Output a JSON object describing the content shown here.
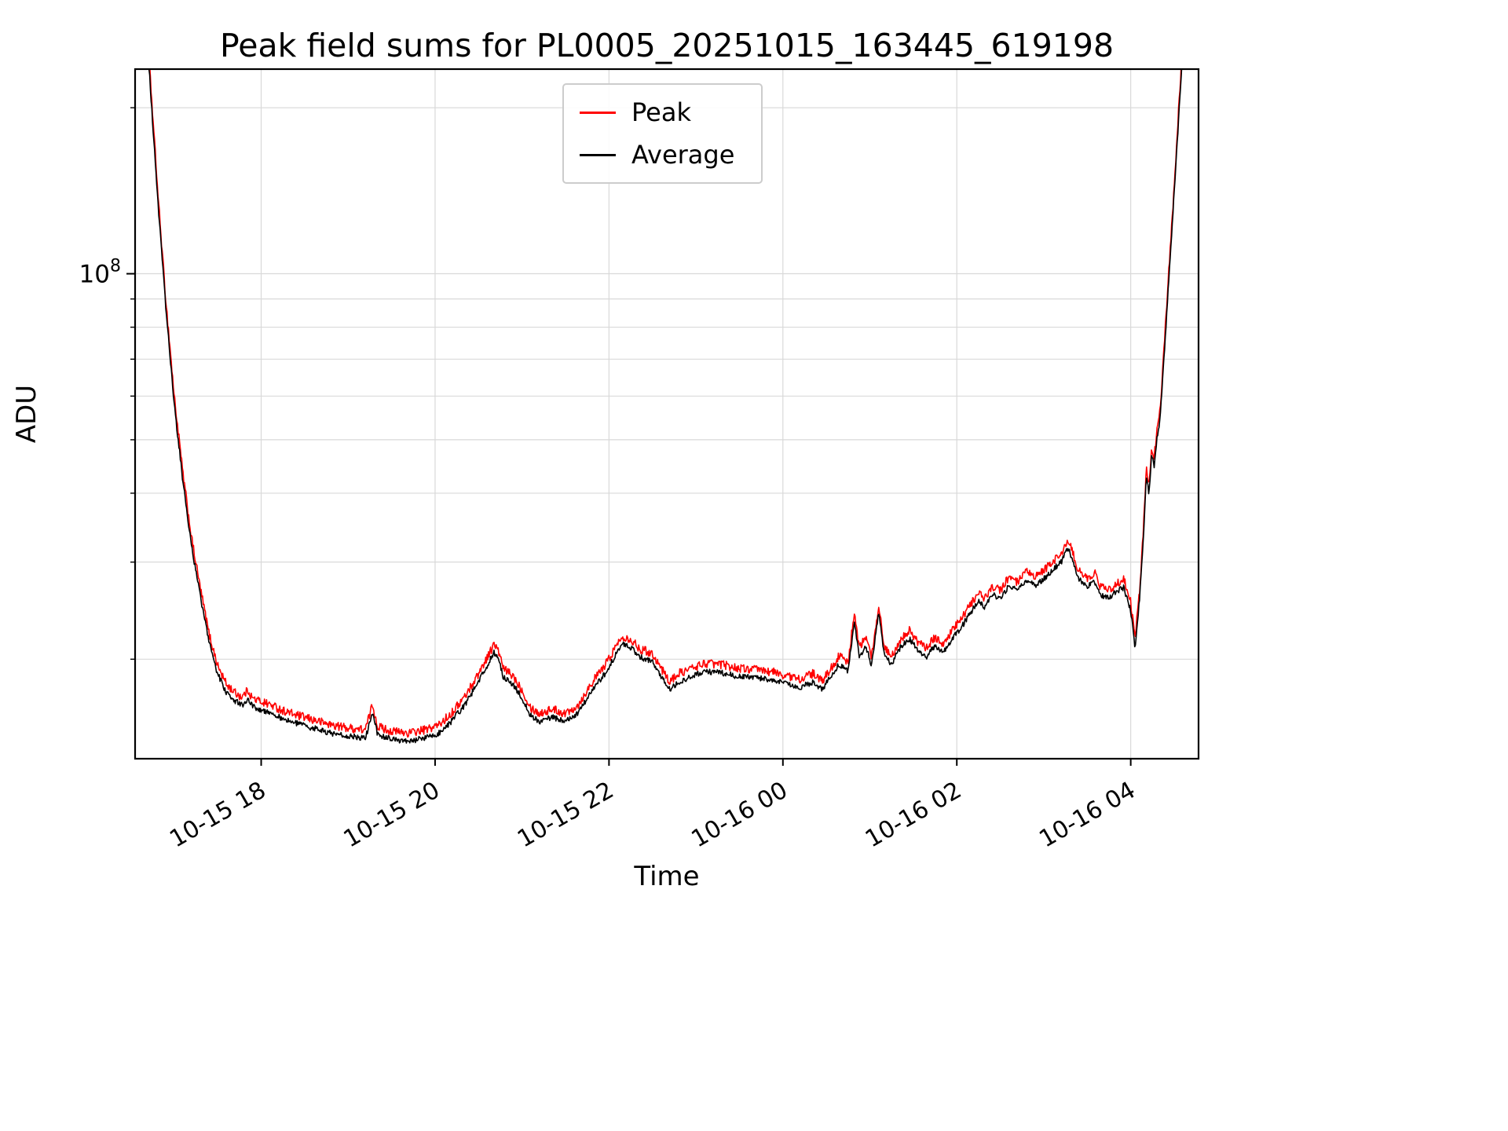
{
  "figure": {
    "title": "Peak field sums for PL0005_20251015_163445_619198"
  },
  "axes": {
    "x_label": "Time",
    "y_label": "ADU"
  },
  "legend": {
    "entries": [
      {
        "label": "Peak",
        "color": "#ff0000"
      },
      {
        "label": "Average",
        "color": "#000000"
      }
    ]
  },
  "chart_data": {
    "type": "line",
    "title": "Peak field sums for PL0005_20251015_163445_619198",
    "xlabel": "Time",
    "ylabel": "ADU",
    "y_scale": "log",
    "grid": true,
    "grid_color": "#d9d9d9",
    "axes_color": "#000000",
    "xlim": [
      16.55,
      28.78
    ],
    "ylim": [
      13200000,
      235000000
    ],
    "x_ticks": {
      "values": [
        18,
        20,
        22,
        24,
        26,
        28
      ],
      "labels": [
        "10-15 18",
        "10-15 20",
        "10-15 22",
        "10-16 00",
        "10-16 02",
        "10-16 04"
      ]
    },
    "y_ticks": {
      "major": {
        "value": 100000000.0,
        "label_base": "10",
        "label_exp": "8"
      },
      "minor": [
        20000000.0,
        30000000.0,
        40000000.0,
        50000000.0,
        60000000.0,
        70000000.0,
        80000000.0,
        90000000.0,
        100000000.0,
        200000000.0
      ]
    },
    "legend_position": "upper center",
    "series": [
      {
        "name": "Peak",
        "color": "#ff0000",
        "ratio_to_average": 1.035,
        "noise_amp": 0.018
      },
      {
        "name": "Average",
        "color": "#000000",
        "ratio_to_average": 1.0,
        "noise_amp": 0.012
      }
    ],
    "sample_step_hours": 0.008,
    "noise_seed": 1234,
    "average_anchors_hours_adu": [
      [
        16.55,
        600000000.0
      ],
      [
        16.6,
        440000000.0
      ],
      [
        16.65,
        330000000.0
      ],
      [
        16.7,
        250000000.0
      ],
      [
        16.76,
        180000000.0
      ],
      [
        16.82,
        130000000.0
      ],
      [
        16.9,
        88000000.0
      ],
      [
        17.0,
        58000000.0
      ],
      [
        17.1,
        42000000.0
      ],
      [
        17.2,
        32000000.0
      ],
      [
        17.3,
        26000000.0
      ],
      [
        17.4,
        21500000.0
      ],
      [
        17.5,
        18800000.0
      ],
      [
        17.6,
        17400000.0
      ],
      [
        17.7,
        16800000.0
      ],
      [
        17.78,
        16500000.0
      ],
      [
        17.85,
        17000000.0
      ],
      [
        17.9,
        16400000.0
      ],
      [
        18.0,
        16200000.0
      ],
      [
        18.1,
        16000000.0
      ],
      [
        18.25,
        15600000.0
      ],
      [
        18.4,
        15300000.0
      ],
      [
        18.6,
        15000000.0
      ],
      [
        18.8,
        14700000.0
      ],
      [
        19.0,
        14500000.0
      ],
      [
        19.2,
        14400000.0
      ],
      [
        19.28,
        16000000.0
      ],
      [
        19.34,
        14600000.0
      ],
      [
        19.5,
        14300000.0
      ],
      [
        19.7,
        14200000.0
      ],
      [
        19.9,
        14400000.0
      ],
      [
        20.05,
        14700000.0
      ],
      [
        20.2,
        15500000.0
      ],
      [
        20.35,
        16600000.0
      ],
      [
        20.5,
        18200000.0
      ],
      [
        20.6,
        19500000.0
      ],
      [
        20.68,
        20600000.0
      ],
      [
        20.74,
        19800000.0
      ],
      [
        20.78,
        18600000.0
      ],
      [
        20.9,
        18000000.0
      ],
      [
        21.0,
        17000000.0
      ],
      [
        21.1,
        15800000.0
      ],
      [
        21.2,
        15400000.0
      ],
      [
        21.35,
        15700000.0
      ],
      [
        21.5,
        15400000.0
      ],
      [
        21.65,
        16000000.0
      ],
      [
        21.8,
        17500000.0
      ],
      [
        21.95,
        18800000.0
      ],
      [
        22.05,
        20000000.0
      ],
      [
        22.15,
        21300000.0
      ],
      [
        22.25,
        21000000.0
      ],
      [
        22.35,
        20200000.0
      ],
      [
        22.5,
        19800000.0
      ],
      [
        22.6,
        18600000.0
      ],
      [
        22.7,
        17600000.0
      ],
      [
        22.8,
        18200000.0
      ],
      [
        22.95,
        18600000.0
      ],
      [
        23.1,
        19000000.0
      ],
      [
        23.3,
        18900000.0
      ],
      [
        23.5,
        18600000.0
      ],
      [
        23.7,
        18500000.0
      ],
      [
        23.9,
        18300000.0
      ],
      [
        24.05,
        18000000.0
      ],
      [
        24.2,
        17800000.0
      ],
      [
        24.35,
        18200000.0
      ],
      [
        24.45,
        17600000.0
      ],
      [
        24.55,
        18600000.0
      ],
      [
        24.65,
        19600000.0
      ],
      [
        24.75,
        19000000.0
      ],
      [
        24.82,
        23500000.0
      ],
      [
        24.88,
        20200000.0
      ],
      [
        24.95,
        21200000.0
      ],
      [
        25.02,
        19500000.0
      ],
      [
        25.1,
        24200000.0
      ],
      [
        25.17,
        20200000.0
      ],
      [
        25.25,
        19600000.0
      ],
      [
        25.35,
        21000000.0
      ],
      [
        25.45,
        21800000.0
      ],
      [
        25.55,
        20800000.0
      ],
      [
        25.65,
        20200000.0
      ],
      [
        25.75,
        21200000.0
      ],
      [
        25.85,
        20600000.0
      ],
      [
        25.95,
        21800000.0
      ],
      [
        26.05,
        22800000.0
      ],
      [
        26.15,
        24200000.0
      ],
      [
        26.25,
        25500000.0
      ],
      [
        26.32,
        24800000.0
      ],
      [
        26.4,
        26200000.0
      ],
      [
        26.5,
        25800000.0
      ],
      [
        26.6,
        27200000.0
      ],
      [
        26.7,
        26600000.0
      ],
      [
        26.8,
        27800000.0
      ],
      [
        26.9,
        27200000.0
      ],
      [
        27.0,
        28000000.0
      ],
      [
        27.1,
        29000000.0
      ],
      [
        27.2,
        30000000.0
      ],
      [
        27.28,
        31800000.0
      ],
      [
        27.32,
        30500000.0
      ],
      [
        27.4,
        28000000.0
      ],
      [
        27.5,
        27000000.0
      ],
      [
        27.58,
        27800000.0
      ],
      [
        27.65,
        26200000.0
      ],
      [
        27.75,
        25800000.0
      ],
      [
        27.85,
        26600000.0
      ],
      [
        27.92,
        27000000.0
      ],
      [
        28.0,
        24500000.0
      ],
      [
        28.05,
        21000000.0
      ],
      [
        28.1,
        25500000.0
      ],
      [
        28.14,
        32000000.0
      ],
      [
        28.18,
        43000000.0
      ],
      [
        28.21,
        40000000.0
      ],
      [
        28.24,
        47000000.0
      ],
      [
        28.27,
        45000000.0
      ],
      [
        28.3,
        50000000.0
      ],
      [
        28.33,
        53000000.0
      ],
      [
        28.36,
        62000000.0
      ],
      [
        28.4,
        78000000.0
      ],
      [
        28.45,
        105000000.0
      ],
      [
        28.5,
        140000000.0
      ],
      [
        28.55,
        190000000.0
      ],
      [
        28.6,
        260000000.0
      ],
      [
        28.65,
        340000000.0
      ],
      [
        28.7,
        440000000.0
      ],
      [
        28.78,
        600000000.0
      ]
    ]
  }
}
